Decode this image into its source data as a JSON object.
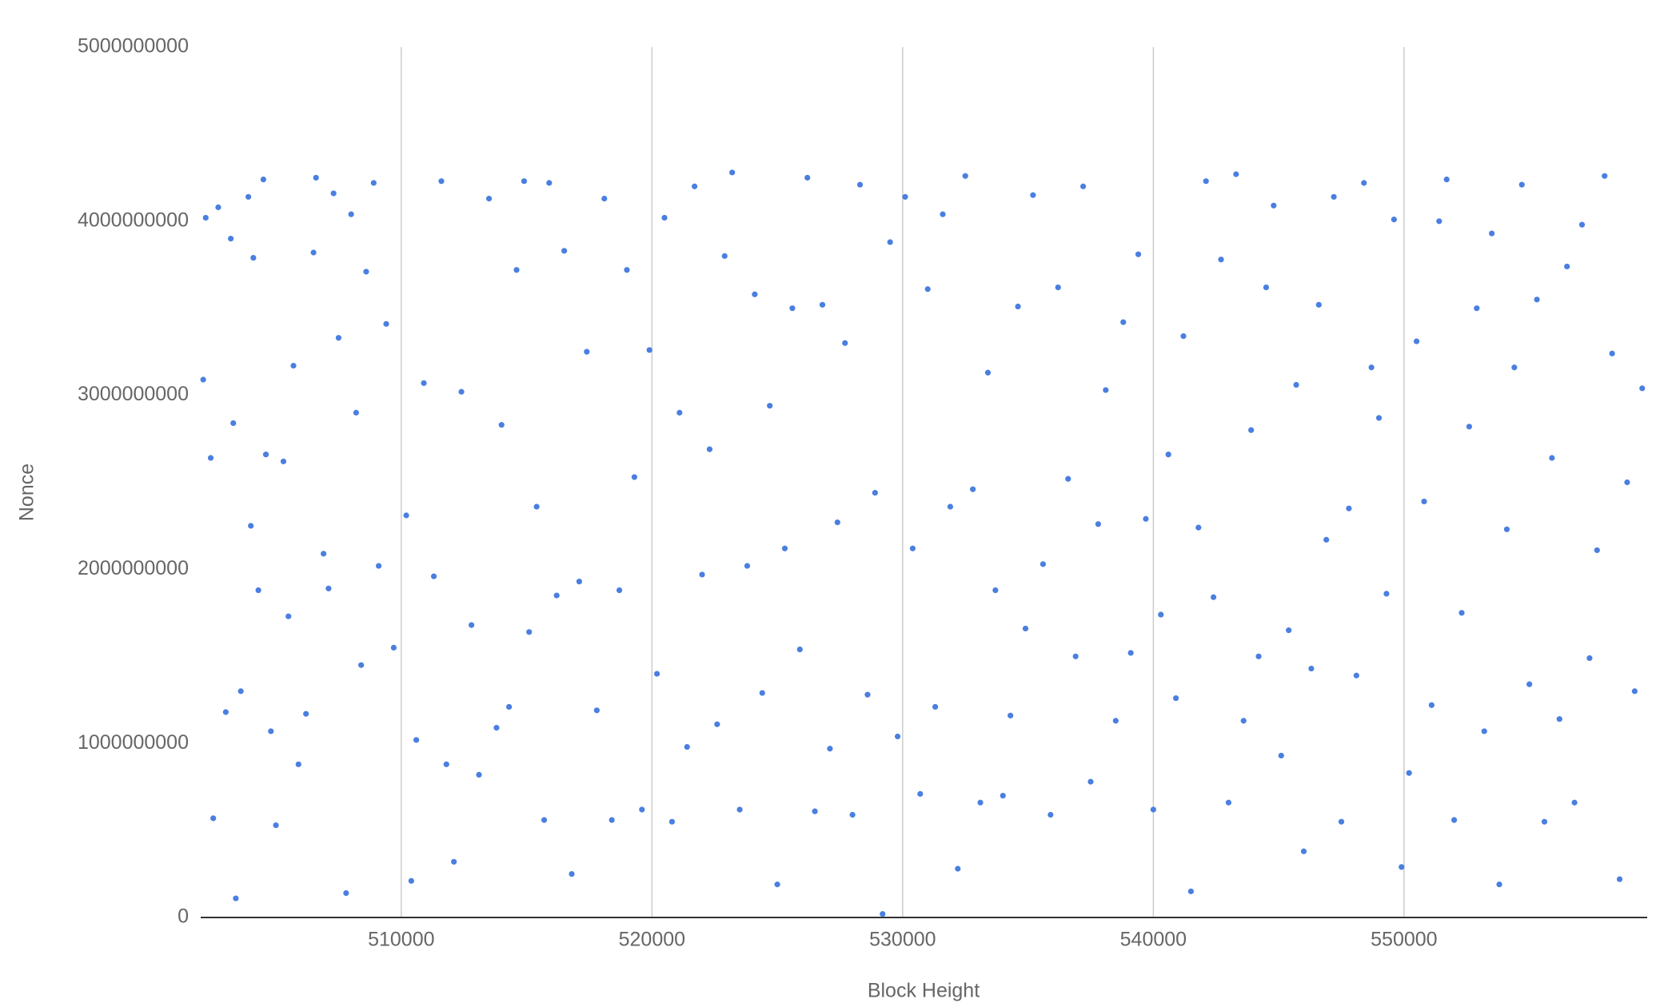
{
  "chart_data": {
    "type": "scatter",
    "x_label": "Block Height",
    "y_label": "Nonce",
    "color": "#4a7fe0",
    "xgrid": true,
    "xlim": [
      502000,
      559700
    ],
    "ylim": [
      0,
      5000000000
    ],
    "xticks": [
      510000,
      520000,
      530000,
      540000,
      550000
    ],
    "yticks": [
      0,
      1000000000,
      2000000000,
      3000000000,
      4000000000,
      5000000000
    ],
    "x": [
      502100,
      502200,
      502400,
      502500,
      502700,
      503000,
      503200,
      503300,
      503400,
      503600,
      503900,
      504000,
      504100,
      504300,
      504500,
      504600,
      504800,
      505000,
      505300,
      505500,
      505700,
      505900,
      506200,
      506500,
      506600,
      506900,
      507100,
      507300,
      507500,
      507800,
      508000,
      508200,
      508400,
      508600,
      508900,
      509100,
      509400,
      509700,
      510200,
      510400,
      510600,
      510900,
      511300,
      511600,
      511800,
      512100,
      512400,
      512800,
      513100,
      513500,
      513800,
      514000,
      514300,
      514600,
      514900,
      515100,
      515400,
      515700,
      515900,
      516200,
      516500,
      516800,
      517100,
      517400,
      517800,
      518100,
      518400,
      518700,
      519000,
      519300,
      519600,
      519900,
      520200,
      520500,
      520800,
      521100,
      521400,
      521700,
      522000,
      522300,
      522600,
      522900,
      523200,
      523500,
      523800,
      524100,
      524400,
      524700,
      525000,
      525300,
      525600,
      525900,
      526200,
      526500,
      526800,
      527100,
      527400,
      527700,
      528000,
      528300,
      528600,
      528900,
      529200,
      529500,
      529800,
      530100,
      530400,
      530700,
      531000,
      531300,
      531600,
      531900,
      532200,
      532500,
      532800,
      533100,
      533400,
      533700,
      534000,
      534300,
      534600,
      534900,
      535200,
      535600,
      535900,
      536200,
      536600,
      536900,
      537200,
      537500,
      537800,
      538100,
      538500,
      538800,
      539100,
      539400,
      539700,
      540000,
      540300,
      540600,
      540900,
      541200,
      541500,
      541800,
      542100,
      542400,
      542700,
      543000,
      543300,
      543600,
      543900,
      544200,
      544500,
      544800,
      545100,
      545400,
      545700,
      546000,
      546300,
      546600,
      546900,
      547200,
      547500,
      547800,
      548100,
      548400,
      548700,
      549000,
      549300,
      549600,
      549900,
      550200,
      550500,
      550800,
      551100,
      551400,
      551700,
      552000,
      552300,
      552600,
      552900,
      553200,
      553500,
      553800,
      554100,
      554400,
      554700,
      555000,
      555300,
      555600,
      555900,
      556200,
      556500,
      556800,
      557100,
      557400,
      557700,
      558000,
      558300,
      558600,
      558900,
      559200,
      559500
    ],
    "values": [
      3090000000,
      4020000000,
      2640000000,
      570000000,
      4080000000,
      1180000000,
      3900000000,
      2840000000,
      110000000,
      1300000000,
      4140000000,
      2250000000,
      3790000000,
      1880000000,
      4240000000,
      2660000000,
      1070000000,
      530000000,
      2620000000,
      1730000000,
      3170000000,
      880000000,
      1170000000,
      3820000000,
      4250000000,
      2090000000,
      1890000000,
      4160000000,
      3330000000,
      140000000,
      4040000000,
      2900000000,
      1450000000,
      3710000000,
      4220000000,
      2020000000,
      3410000000,
      1550000000,
      2310000000,
      210000000,
      1020000000,
      3070000000,
      1960000000,
      4230000000,
      880000000,
      320000000,
      3020000000,
      1680000000,
      820000000,
      4130000000,
      1090000000,
      2830000000,
      1210000000,
      3720000000,
      4230000000,
      1640000000,
      2360000000,
      560000000,
      4220000000,
      1850000000,
      3830000000,
      250000000,
      1930000000,
      3250000000,
      1190000000,
      4130000000,
      560000000,
      1880000000,
      3720000000,
      2530000000,
      620000000,
      3260000000,
      1400000000,
      4020000000,
      550000000,
      2900000000,
      980000000,
      4200000000,
      1970000000,
      2690000000,
      1110000000,
      3800000000,
      4280000000,
      620000000,
      2020000000,
      3580000000,
      1290000000,
      2940000000,
      190000000,
      2120000000,
      3500000000,
      1540000000,
      4250000000,
      610000000,
      3520000000,
      970000000,
      2270000000,
      3300000000,
      590000000,
      4210000000,
      1280000000,
      2440000000,
      20000000,
      3880000000,
      1040000000,
      4140000000,
      2120000000,
      710000000,
      3610000000,
      1210000000,
      4040000000,
      2360000000,
      280000000,
      4260000000,
      2460000000,
      660000000,
      3130000000,
      1880000000,
      700000000,
      1160000000,
      3510000000,
      1660000000,
      4150000000,
      2030000000,
      590000000,
      3620000000,
      2520000000,
      1500000000,
      4200000000,
      780000000,
      2260000000,
      3030000000,
      1130000000,
      3420000000,
      1520000000,
      3810000000,
      2290000000,
      620000000,
      1740000000,
      2660000000,
      1260000000,
      3340000000,
      150000000,
      2240000000,
      4230000000,
      1840000000,
      3780000000,
      660000000,
      4270000000,
      1130000000,
      2800000000,
      1500000000,
      3620000000,
      4090000000,
      930000000,
      1650000000,
      3060000000,
      380000000,
      1430000000,
      3520000000,
      2170000000,
      4140000000,
      550000000,
      2350000000,
      1390000000,
      4220000000,
      3160000000,
      2870000000,
      1860000000,
      4010000000,
      290000000,
      830000000,
      3310000000,
      2390000000,
      1220000000,
      4000000000,
      4240000000,
      560000000,
      1750000000,
      2820000000,
      3500000000,
      1070000000,
      3930000000,
      190000000,
      2230000000,
      3160000000,
      4210000000,
      1340000000,
      3550000000,
      550000000,
      2640000000,
      1140000000,
      3740000000,
      660000000,
      3980000000,
      1490000000,
      2110000000,
      4260000000,
      3240000000,
      220000000,
      2500000000,
      1300000000,
      3040000000
    ]
  }
}
